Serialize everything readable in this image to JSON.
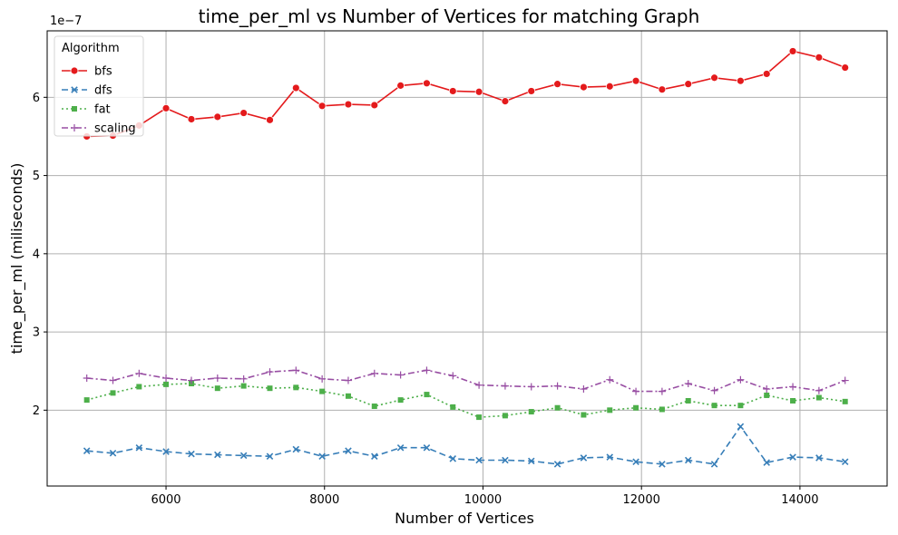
{
  "chart_data": {
    "type": "line",
    "title": "time_per_ml vs Number of Vertices for matching Graph",
    "xlabel": "Number of Vertices",
    "ylabel": "time_per_ml (miliseconds)",
    "y_offset_label": "1e−7",
    "xlim": [
      4500,
      15100
    ],
    "ylim": [
      1.03,
      6.85
    ],
    "xticks": [
      6000,
      8000,
      10000,
      12000,
      14000
    ],
    "yticks": [
      2,
      3,
      4,
      5,
      6
    ],
    "grid": true,
    "legend": {
      "title": "Algorithm",
      "position": "top-left"
    },
    "x": [
      5000,
      5330,
      5660,
      6000,
      6320,
      6650,
      6980,
      7310,
      7640,
      7970,
      8300,
      8630,
      8960,
      9290,
      9620,
      9950,
      10280,
      10610,
      10940,
      11270,
      11600,
      11930,
      12260,
      12590,
      12920,
      13250,
      13580,
      13910,
      14240,
      14570
    ],
    "series": [
      {
        "name": "bfs",
        "color": "#e41a1c",
        "marker": "circle",
        "dash": "solid",
        "values": [
          5.5,
          5.51,
          5.64,
          5.86,
          5.72,
          5.75,
          5.8,
          5.71,
          6.12,
          5.89,
          5.91,
          5.9,
          6.15,
          6.18,
          6.08,
          6.07,
          5.95,
          6.08,
          6.17,
          6.13,
          6.14,
          6.21,
          6.1,
          6.17,
          6.25,
          6.21,
          6.3,
          6.59,
          6.51,
          6.38
        ]
      },
      {
        "name": "dfs",
        "color": "#377eb8",
        "marker": "x",
        "dash": "dashed",
        "values": [
          1.48,
          1.45,
          1.52,
          1.47,
          1.44,
          1.43,
          1.42,
          1.41,
          1.5,
          1.41,
          1.48,
          1.41,
          1.52,
          1.52,
          1.38,
          1.36,
          1.36,
          1.35,
          1.31,
          1.39,
          1.4,
          1.34,
          1.31,
          1.36,
          1.31,
          1.79,
          1.33,
          1.4,
          1.39,
          1.34
        ]
      },
      {
        "name": "fat",
        "color": "#4daf4a",
        "marker": "square",
        "dash": "dotted",
        "values": [
          2.13,
          2.22,
          2.3,
          2.33,
          2.34,
          2.28,
          2.31,
          2.28,
          2.29,
          2.24,
          2.18,
          2.05,
          2.13,
          2.2,
          2.04,
          1.91,
          1.93,
          1.98,
          2.03,
          1.94,
          2.0,
          2.03,
          2.01,
          2.12,
          2.06,
          2.06,
          2.19,
          2.12,
          2.16,
          2.11
        ]
      },
      {
        "name": "scaling",
        "color": "#984ea3",
        "marker": "plus",
        "dash": "dashdot",
        "values": [
          2.41,
          2.38,
          2.47,
          2.41,
          2.38,
          2.41,
          2.4,
          2.49,
          2.51,
          2.4,
          2.38,
          2.47,
          2.45,
          2.51,
          2.44,
          2.32,
          2.31,
          2.3,
          2.31,
          2.27,
          2.39,
          2.24,
          2.24,
          2.34,
          2.25,
          2.39,
          2.27,
          2.3,
          2.25,
          2.38
        ]
      }
    ]
  }
}
